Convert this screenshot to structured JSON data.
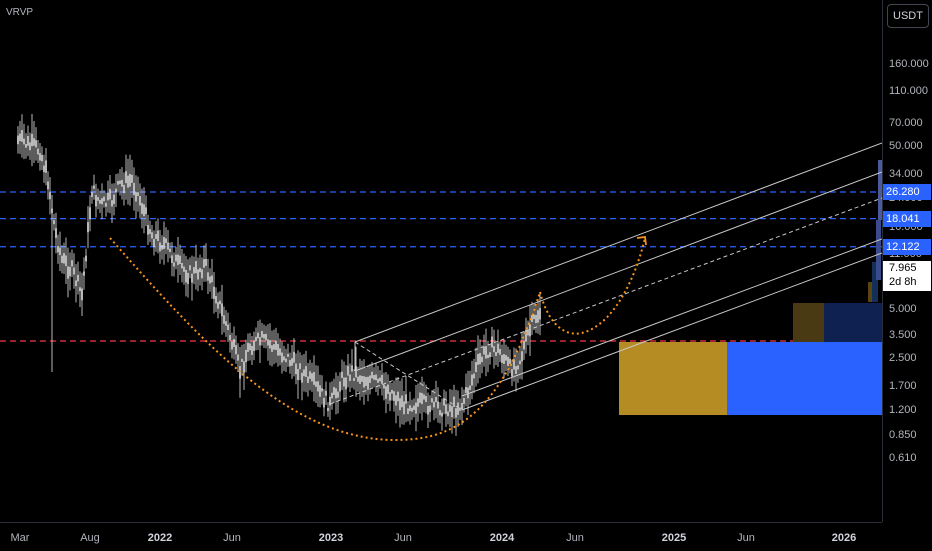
{
  "indicator": {
    "label": "VRVP"
  },
  "price_axis": {
    "currency": "USDT",
    "ticks": [
      {
        "label": "160.000",
        "value": 160
      },
      {
        "label": "110.000",
        "value": 110
      },
      {
        "label": "70.000",
        "value": 70
      },
      {
        "label": "50.000",
        "value": 50
      },
      {
        "label": "34.000",
        "value": 34
      },
      {
        "label": "24.000",
        "value": 24
      },
      {
        "label": "16.000",
        "value": 16
      },
      {
        "label": "11.000",
        "value": 11
      },
      {
        "label": "5.000",
        "value": 5
      },
      {
        "label": "3.500",
        "value": 3.5
      },
      {
        "label": "2.500",
        "value": 2.5
      },
      {
        "label": "1.700",
        "value": 1.7
      },
      {
        "label": "1.200",
        "value": 1.2
      },
      {
        "label": "0.850",
        "value": 0.85
      },
      {
        "label": "0.610",
        "value": 0.61
      }
    ],
    "level_badges": [
      {
        "label": "26.280",
        "value": 26.28
      },
      {
        "label": "18.041",
        "value": 18.041
      },
      {
        "label": "12.122",
        "value": 12.122
      }
    ],
    "current_price": {
      "price": "7.965",
      "countdown": "2d 8h",
      "value": 7.965
    }
  },
  "time_axis": {
    "labels": [
      {
        "label": "Mar",
        "bold": false
      },
      {
        "label": "Aug",
        "bold": false
      },
      {
        "label": "2022",
        "bold": true
      },
      {
        "label": "Jun",
        "bold": false
      },
      {
        "label": "2023",
        "bold": true
      },
      {
        "label": "Jun",
        "bold": false
      },
      {
        "label": "2024",
        "bold": true
      },
      {
        "label": "Jun",
        "bold": false
      },
      {
        "label": "2025",
        "bold": true
      },
      {
        "label": "Jun",
        "bold": false
      },
      {
        "label": "2026",
        "bold": true
      }
    ]
  },
  "levels": {
    "blue_dashed": [
      26.28,
      18.041,
      12.122
    ],
    "red_dashed": [
      3.2
    ]
  },
  "colors": {
    "background": "#000000",
    "level_blue": "#2962ff",
    "level_red": "#f23645",
    "arc_orange": "#f7931a",
    "channel_line": "#c8c8c8",
    "candle": "#e6e6e6",
    "box_gold": "#b48c23",
    "box_blue": "#2962ff",
    "box_gold_dark": "#4a3a13",
    "box_navy": "#0f2150"
  }
}
